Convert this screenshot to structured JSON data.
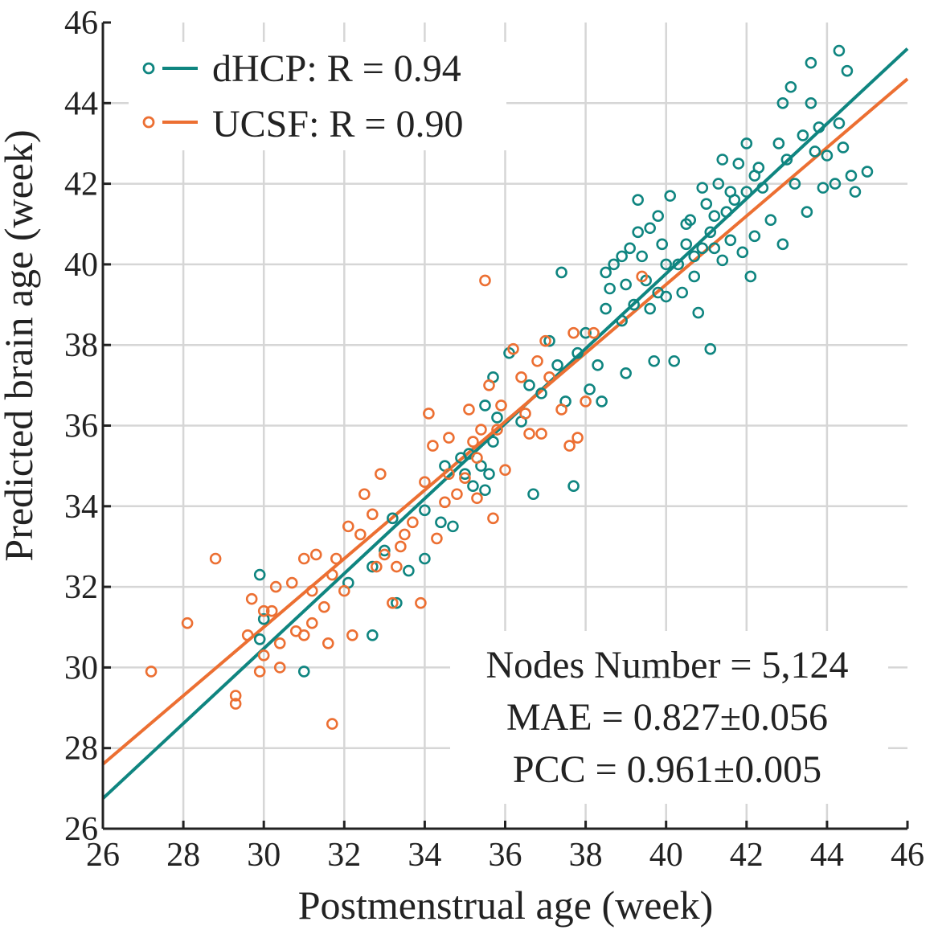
{
  "chart_data": {
    "type": "scatter",
    "title": "",
    "xlabel": "Postmenstrual age (week)",
    "ylabel": "Predicted brain age (week)",
    "xlim": [
      26,
      46
    ],
    "ylim": [
      26,
      46
    ],
    "xticks": [
      26,
      28,
      30,
      32,
      34,
      36,
      38,
      40,
      42,
      44,
      46
    ],
    "yticks": [
      26,
      28,
      30,
      32,
      34,
      36,
      38,
      40,
      42,
      44,
      46
    ],
    "grid": true,
    "legend": "top-left",
    "series": [
      {
        "name": "dHCP",
        "legend_label": "dHCP: R = 0.94",
        "color": "#0f8580",
        "marker": "open-circle",
        "fit_line": {
          "x": [
            26,
            46
          ],
          "y": [
            26.75,
            45.35
          ]
        },
        "points": [
          [
            29.9,
            32.3
          ],
          [
            29.9,
            30.7
          ],
          [
            31.0,
            29.9
          ],
          [
            30.0,
            31.2
          ],
          [
            32.1,
            32.1
          ],
          [
            32.7,
            30.8
          ],
          [
            32.7,
            32.5
          ],
          [
            33.0,
            32.9
          ],
          [
            33.2,
            33.7
          ],
          [
            33.3,
            31.6
          ],
          [
            33.6,
            32.4
          ],
          [
            34.0,
            32.7
          ],
          [
            34.0,
            33.9
          ],
          [
            34.4,
            33.6
          ],
          [
            34.5,
            35.0
          ],
          [
            34.7,
            33.5
          ],
          [
            34.9,
            35.2
          ],
          [
            35.0,
            34.8
          ],
          [
            35.1,
            35.3
          ],
          [
            35.2,
            34.5
          ],
          [
            35.4,
            35.0
          ],
          [
            35.5,
            34.4
          ],
          [
            35.6,
            34.8
          ],
          [
            35.7,
            35.6
          ],
          [
            35.8,
            36.2
          ],
          [
            35.7,
            37.2
          ],
          [
            35.5,
            36.5
          ],
          [
            36.1,
            37.8
          ],
          [
            36.4,
            36.1
          ],
          [
            36.6,
            37.0
          ],
          [
            36.7,
            34.3
          ],
          [
            36.9,
            36.8
          ],
          [
            37.1,
            38.1
          ],
          [
            37.3,
            37.5
          ],
          [
            37.5,
            36.6
          ],
          [
            37.4,
            39.8
          ],
          [
            37.7,
            34.5
          ],
          [
            37.8,
            37.8
          ],
          [
            38.0,
            38.3
          ],
          [
            38.1,
            36.9
          ],
          [
            38.3,
            37.5
          ],
          [
            38.4,
            36.6
          ],
          [
            38.5,
            38.9
          ],
          [
            38.6,
            39.4
          ],
          [
            38.7,
            40.0
          ],
          [
            38.9,
            38.6
          ],
          [
            39.0,
            37.3
          ],
          [
            39.0,
            39.5
          ],
          [
            39.1,
            40.4
          ],
          [
            39.2,
            39.0
          ],
          [
            39.3,
            41.6
          ],
          [
            39.4,
            40.2
          ],
          [
            39.5,
            39.6
          ],
          [
            39.6,
            38.9
          ],
          [
            39.6,
            40.9
          ],
          [
            39.7,
            37.6
          ],
          [
            39.8,
            39.3
          ],
          [
            39.9,
            40.5
          ],
          [
            40.0,
            39.2
          ],
          [
            40.1,
            41.7
          ],
          [
            40.2,
            37.6
          ],
          [
            40.3,
            40.0
          ],
          [
            40.4,
            39.3
          ],
          [
            40.5,
            40.5
          ],
          [
            40.6,
            41.1
          ],
          [
            40.7,
            39.7
          ],
          [
            40.8,
            38.8
          ],
          [
            40.9,
            40.4
          ],
          [
            41.0,
            41.5
          ],
          [
            41.1,
            40.8
          ],
          [
            41.1,
            37.9
          ],
          [
            41.2,
            41.2
          ],
          [
            41.3,
            42.0
          ],
          [
            41.4,
            40.1
          ],
          [
            41.5,
            41.3
          ],
          [
            41.6,
            40.6
          ],
          [
            41.7,
            41.6
          ],
          [
            41.8,
            42.5
          ],
          [
            41.9,
            40.3
          ],
          [
            42.0,
            41.8
          ],
          [
            42.1,
            39.7
          ],
          [
            42.2,
            40.7
          ],
          [
            42.3,
            42.4
          ],
          [
            42.4,
            41.9
          ],
          [
            42.6,
            41.1
          ],
          [
            42.8,
            43.0
          ],
          [
            42.9,
            40.5
          ],
          [
            43.0,
            42.6
          ],
          [
            43.1,
            44.4
          ],
          [
            43.2,
            42.0
          ],
          [
            43.4,
            43.2
          ],
          [
            43.5,
            41.3
          ],
          [
            43.6,
            44.0
          ],
          [
            43.7,
            42.8
          ],
          [
            43.8,
            43.4
          ],
          [
            43.9,
            41.9
          ],
          [
            44.0,
            42.7
          ],
          [
            44.2,
            42.0
          ],
          [
            44.3,
            43.5
          ],
          [
            44.4,
            42.9
          ],
          [
            44.5,
            44.8
          ],
          [
            44.6,
            42.2
          ],
          [
            44.7,
            41.8
          ],
          [
            45.0,
            42.3
          ],
          [
            43.6,
            45.0
          ],
          [
            44.3,
            45.3
          ],
          [
            42.9,
            44.0
          ],
          [
            42.0,
            43.0
          ],
          [
            41.4,
            42.6
          ],
          [
            40.9,
            41.9
          ],
          [
            40.5,
            41.0
          ],
          [
            39.8,
            41.2
          ],
          [
            39.3,
            40.8
          ],
          [
            38.9,
            40.2
          ],
          [
            38.5,
            39.8
          ],
          [
            40.0,
            40.0
          ],
          [
            40.7,
            40.2
          ],
          [
            41.2,
            40.4
          ],
          [
            41.6,
            41.8
          ],
          [
            42.2,
            42.2
          ]
        ]
      },
      {
        "name": "UCSF",
        "legend_label": "UCSF: R = 0.90",
        "color": "#ec6f32",
        "marker": "open-circle",
        "fit_line": {
          "x": [
            26,
            46
          ],
          "y": [
            27.6,
            44.6
          ]
        },
        "points": [
          [
            27.2,
            29.9
          ],
          [
            28.1,
            31.1
          ],
          [
            28.8,
            32.7
          ],
          [
            29.3,
            29.3
          ],
          [
            29.3,
            29.1
          ],
          [
            29.6,
            30.8
          ],
          [
            29.7,
            31.7
          ],
          [
            29.9,
            29.9
          ],
          [
            30.0,
            31.4
          ],
          [
            30.0,
            30.3
          ],
          [
            30.2,
            31.4
          ],
          [
            30.3,
            32.0
          ],
          [
            30.4,
            30.6
          ],
          [
            30.4,
            30.0
          ],
          [
            30.7,
            32.1
          ],
          [
            30.8,
            30.9
          ],
          [
            31.0,
            30.8
          ],
          [
            31.0,
            32.7
          ],
          [
            31.2,
            31.9
          ],
          [
            31.3,
            32.8
          ],
          [
            31.5,
            31.5
          ],
          [
            31.6,
            30.6
          ],
          [
            31.7,
            28.6
          ],
          [
            31.7,
            32.3
          ],
          [
            31.8,
            32.7
          ],
          [
            32.0,
            31.9
          ],
          [
            32.1,
            33.5
          ],
          [
            32.2,
            30.8
          ],
          [
            32.4,
            33.3
          ],
          [
            32.5,
            34.3
          ],
          [
            32.7,
            33.8
          ],
          [
            32.8,
            32.5
          ],
          [
            32.9,
            34.8
          ],
          [
            33.0,
            32.8
          ],
          [
            33.2,
            31.6
          ],
          [
            33.3,
            32.5
          ],
          [
            33.5,
            33.3
          ],
          [
            33.7,
            33.6
          ],
          [
            33.9,
            31.6
          ],
          [
            34.0,
            34.6
          ],
          [
            34.1,
            36.3
          ],
          [
            34.2,
            35.5
          ],
          [
            34.3,
            33.2
          ],
          [
            34.5,
            34.1
          ],
          [
            34.6,
            35.7
          ],
          [
            34.8,
            34.3
          ],
          [
            35.0,
            34.7
          ],
          [
            35.1,
            36.4
          ],
          [
            35.2,
            35.6
          ],
          [
            35.3,
            34.2
          ],
          [
            35.4,
            35.9
          ],
          [
            35.5,
            39.6
          ],
          [
            35.6,
            37.0
          ],
          [
            35.7,
            33.7
          ],
          [
            35.8,
            35.9
          ],
          [
            35.9,
            36.5
          ],
          [
            36.0,
            34.9
          ],
          [
            36.2,
            37.9
          ],
          [
            36.4,
            37.2
          ],
          [
            36.5,
            36.3
          ],
          [
            36.6,
            35.8
          ],
          [
            36.8,
            37.6
          ],
          [
            36.9,
            35.8
          ],
          [
            37.0,
            38.1
          ],
          [
            37.1,
            37.2
          ],
          [
            37.4,
            36.4
          ],
          [
            37.6,
            35.5
          ],
          [
            37.7,
            38.3
          ],
          [
            37.8,
            35.7
          ],
          [
            38.0,
            36.6
          ],
          [
            38.2,
            38.3
          ],
          [
            39.4,
            39.7
          ],
          [
            34.6,
            34.8
          ],
          [
            35.3,
            35.2
          ],
          [
            33.4,
            33.0
          ],
          [
            31.2,
            31.1
          ]
        ]
      }
    ],
    "annotations": [
      "Nodes Number = 5,124",
      "MAE = 0.827±0.056",
      "PCC = 0.961±0.005"
    ]
  }
}
